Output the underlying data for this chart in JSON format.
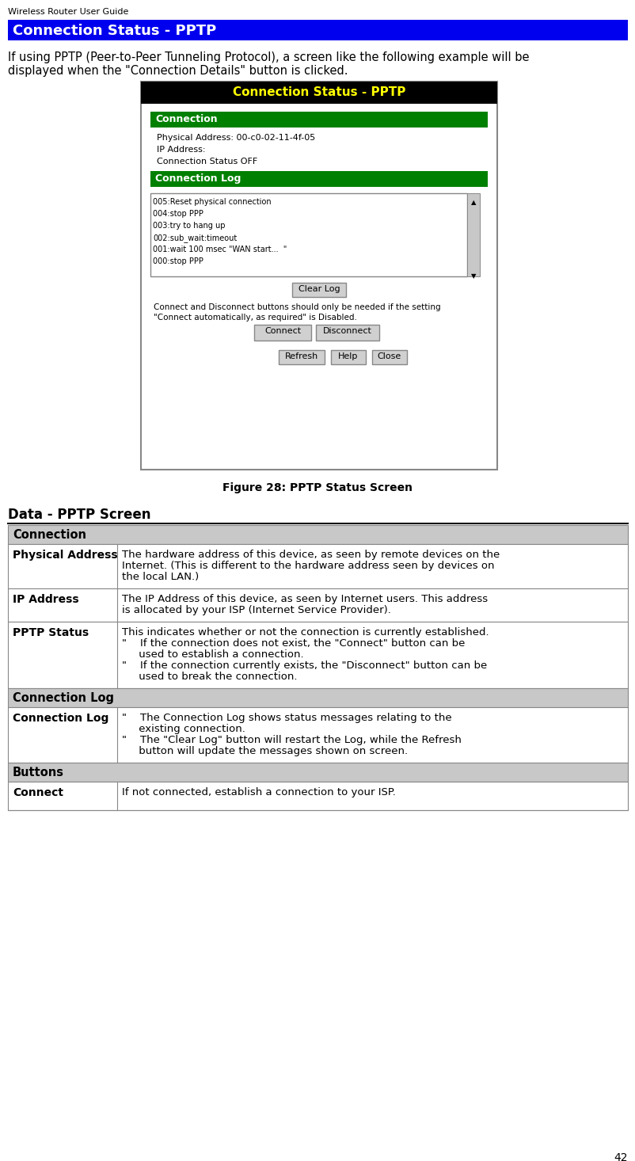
{
  "page_header": "Wireless Router User Guide",
  "section_title": "Connection Status - PPTP",
  "section_title_bg": "#0000EE",
  "section_title_color": "#FFFFFF",
  "intro_line1": "If using PPTP (Peer-to-Peer Tunneling Protocol), a screen like the following example will be",
  "intro_line2": "displayed when the \"Connection Details\" button is clicked.",
  "figure_caption": "Figure 28: PPTP Status Screen",
  "screenshot": {
    "title": "Connection Status - PPTP",
    "title_bg": "#000000",
    "title_color": "#FFFF00",
    "section1_label": "Connection",
    "section1_bg": "#008000",
    "fields": [
      "Physical Address: 00-c0-02-11-4f-05",
      "IP Address:",
      "Connection Status OFF"
    ],
    "section2_label": "Connection Log",
    "section2_bg": "#008000",
    "log_lines": [
      "005:Reset physical connection",
      "004:stop PPP",
      "003:try to hang up",
      "002:sub_wait:timeout",
      "001:wait 100 msec \"WAN start...  \"",
      "000:stop PPP"
    ],
    "button_clearlog": "Clear Log",
    "note_line1": "Connect and Disconnect buttons should only be needed if the setting",
    "note_line2": "\"Connect automatically, as required\" is Disabled.",
    "buttons_row1": [
      "Connect",
      "Disconnect"
    ],
    "buttons_row2": [
      "Refresh",
      "Help",
      "Close"
    ]
  },
  "table_title": "Data - PPTP Screen",
  "table_sections": [
    {
      "header": "Connection",
      "header_bg": "#C8C8C8",
      "rows": [
        {
          "term": "Physical Address",
          "desc_lines": [
            "The hardware address of this device, as seen by remote devices on the",
            "Internet. (This is different to the hardware address seen by devices on",
            "the local LAN.)"
          ]
        },
        {
          "term": "IP Address",
          "desc_lines": [
            "The IP Address of this device, as seen by Internet users. This address",
            "is allocated by your ISP (Internet Service Provider)."
          ]
        },
        {
          "term": "PPTP Status",
          "desc_lines": [
            "This indicates whether or not the connection is currently established.",
            "\"    If the connection does not exist, the \"Connect\" button can be",
            "     used to establish a connection.",
            "\"    If the connection currently exists, the \"Disconnect\" button can be",
            "     used to break the connection."
          ]
        }
      ]
    },
    {
      "header": "Connection Log",
      "header_bg": "#C8C8C8",
      "rows": [
        {
          "term": "Connection Log",
          "desc_lines": [
            "\"    The Connection Log shows status messages relating to the",
            "     existing connection.",
            "\"    The \"Clear Log\" button will restart the Log, while the Refresh",
            "     button will update the messages shown on screen."
          ]
        }
      ]
    },
    {
      "header": "Buttons",
      "header_bg": "#C8C8C8",
      "rows": [
        {
          "term": "Connect",
          "desc_lines": [
            "If not connected, establish a connection to your ISP."
          ]
        }
      ]
    }
  ],
  "page_number": "42",
  "bg_color": "#FFFFFF"
}
